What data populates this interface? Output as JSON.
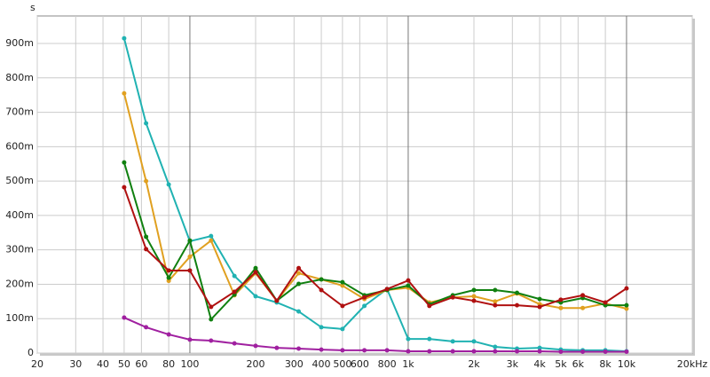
{
  "chart_data": {
    "type": "line",
    "y_label": "s",
    "log_x": true,
    "grid": true,
    "x": [
      50,
      63,
      80,
      100,
      125,
      160,
      200,
      250,
      315,
      400,
      500,
      630,
      800,
      1000,
      1250,
      1600,
      2000,
      2500,
      3150,
      4000,
      5000,
      6300,
      8000,
      10000
    ],
    "xlim": [
      20,
      20000
    ],
    "xticks": [
      20,
      30,
      40,
      50,
      60,
      80,
      100,
      200,
      300,
      400,
      500,
      600,
      800,
      {
        "value": 1000,
        "label": "1k"
      },
      {
        "value": 2000,
        "label": "2k"
      },
      {
        "value": 3000,
        "label": "3k"
      },
      {
        "value": 4000,
        "label": "4k"
      },
      {
        "value": 5000,
        "label": "5k"
      },
      {
        "value": 6000,
        "label": "6k"
      },
      {
        "value": 8000,
        "label": "8k"
      },
      {
        "value": 10000,
        "label": "10k"
      },
      {
        "value": 20000,
        "label": "20kHz"
      }
    ],
    "ylim": [
      0,
      0.98
    ],
    "yticks": [
      0,
      {
        "value": 0.1,
        "label": "100m"
      },
      {
        "value": 0.2,
        "label": "200m"
      },
      {
        "value": 0.3,
        "label": "300m"
      },
      {
        "value": 0.4,
        "label": "400m"
      },
      {
        "value": 0.5,
        "label": "500m"
      },
      {
        "value": 0.6,
        "label": "600m"
      },
      {
        "value": 0.7,
        "label": "700m"
      },
      {
        "value": 0.8,
        "label": "800m"
      },
      {
        "value": 0.9,
        "label": "900m"
      }
    ],
    "series": [
      {
        "color": "#20b2b2",
        "values": [
          0.915,
          0.668,
          0.49,
          0.325,
          0.34,
          0.224,
          0.165,
          0.147,
          0.121,
          0.075,
          0.07,
          0.137,
          0.186,
          0.041,
          0.041,
          0.034,
          0.034,
          0.018,
          0.013,
          0.015,
          0.01,
          0.008,
          0.008,
          0.005
        ]
      },
      {
        "color": "#e0a020",
        "values": [
          0.755,
          0.5,
          0.21,
          0.28,
          0.327,
          0.168,
          0.232,
          0.152,
          0.232,
          0.214,
          0.196,
          0.157,
          0.183,
          0.19,
          0.147,
          0.162,
          0.165,
          0.15,
          0.173,
          0.142,
          0.131,
          0.131,
          0.144,
          0.129
        ]
      },
      {
        "color": "#108010",
        "values": [
          0.554,
          0.338,
          0.219,
          0.327,
          0.098,
          0.17,
          0.247,
          0.152,
          0.201,
          0.214,
          0.206,
          0.168,
          0.183,
          0.196,
          0.142,
          0.168,
          0.183,
          0.183,
          0.175,
          0.157,
          0.147,
          0.16,
          0.139,
          0.139
        ]
      },
      {
        "color": "#b01010",
        "values": [
          0.482,
          0.302,
          0.24,
          0.24,
          0.134,
          0.178,
          0.235,
          0.152,
          0.247,
          0.183,
          0.137,
          0.162,
          0.186,
          0.211,
          0.137,
          0.162,
          0.152,
          0.139,
          0.139,
          0.134,
          0.155,
          0.168,
          0.147,
          0.188
        ]
      },
      {
        "color": "#a020a0",
        "values": [
          0.103,
          0.075,
          0.054,
          0.039,
          0.036,
          0.028,
          0.021,
          0.015,
          0.013,
          0.01,
          0.008,
          0.008,
          0.008,
          0.005,
          0.005,
          0.005,
          0.005,
          0.005,
          0.005,
          0.005,
          0.004,
          0.004,
          0.004,
          0.004
        ]
      }
    ]
  }
}
